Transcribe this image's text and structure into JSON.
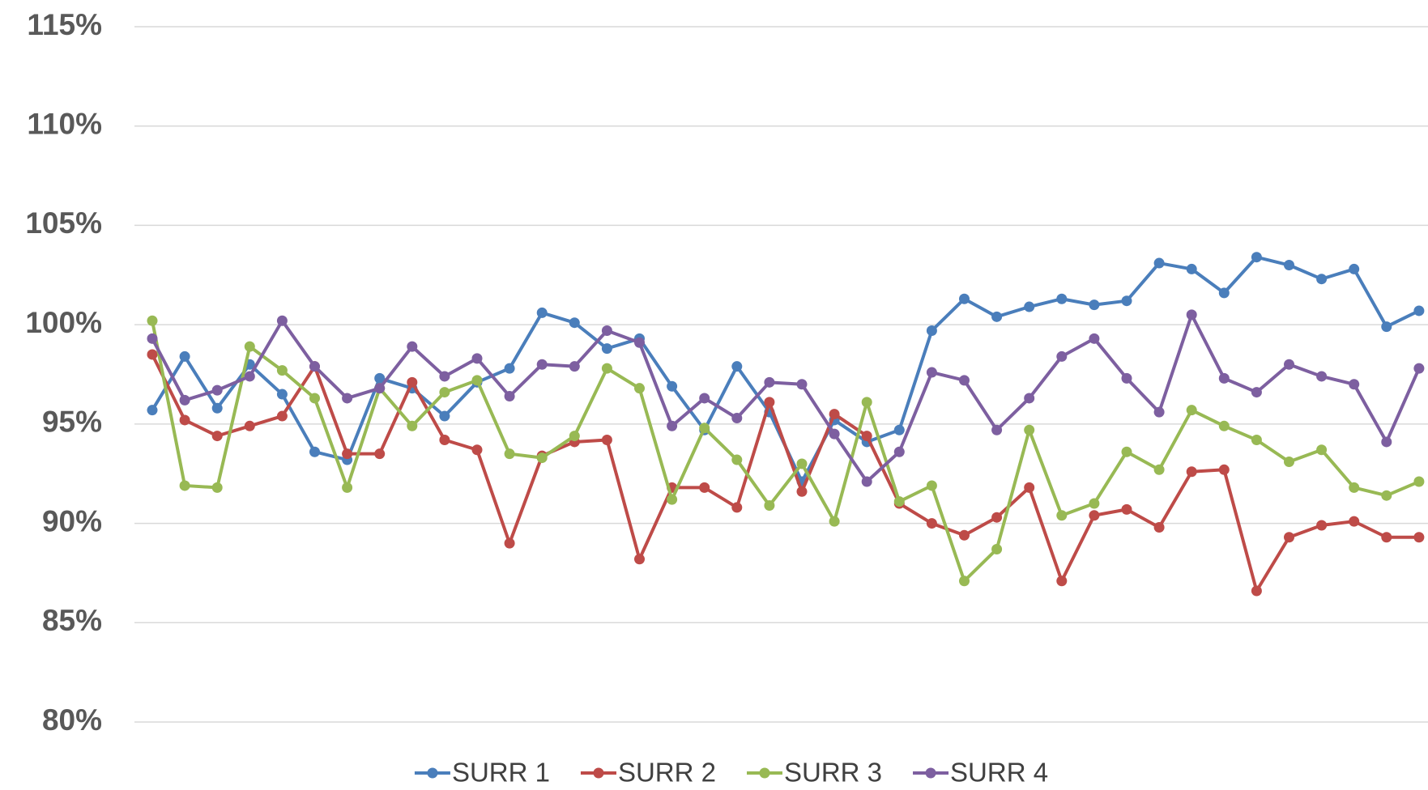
{
  "chart_data": {
    "type": "line",
    "categories": [
      null,
      null,
      null,
      null,
      null,
      null,
      null,
      null,
      null,
      null,
      null,
      null,
      null,
      null,
      null,
      null,
      null,
      null,
      null,
      null,
      null,
      null,
      null,
      null,
      null,
      null,
      null,
      null,
      null,
      null,
      null,
      null,
      null,
      null,
      null,
      null,
      null,
      null,
      null,
      null
    ],
    "series": [
      {
        "name": "SURR 1",
        "color": "#4a7ebb",
        "values": [
          95.7,
          98.4,
          95.8,
          98.0,
          96.5,
          93.6,
          93.2,
          97.3,
          96.8,
          95.4,
          97.1,
          97.8,
          100.6,
          100.1,
          98.8,
          99.3,
          96.9,
          94.7,
          97.9,
          95.6,
          92.1,
          95.2,
          94.1,
          94.7,
          99.7,
          101.3,
          100.4,
          100.9,
          101.3,
          101.0,
          101.2,
          103.1,
          102.8,
          101.6,
          103.4,
          103.0,
          102.3,
          102.8,
          99.9,
          100.7
        ]
      },
      {
        "name": "SURR 2",
        "color": "#be4b48",
        "values": [
          98.5,
          95.2,
          94.4,
          94.9,
          95.4,
          97.9,
          93.5,
          93.5,
          97.1,
          94.2,
          93.7,
          89.0,
          93.4,
          94.1,
          94.2,
          88.2,
          91.8,
          91.8,
          90.8,
          96.1,
          91.6,
          95.5,
          94.4,
          91.0,
          90.0,
          89.4,
          90.3,
          91.8,
          87.1,
          90.4,
          90.7,
          89.8,
          92.6,
          92.7,
          86.6,
          89.3,
          89.9,
          90.1,
          89.3,
          89.3
        ]
      },
      {
        "name": "SURR 3",
        "color": "#98b954",
        "values": [
          100.2,
          91.9,
          91.8,
          98.9,
          97.7,
          96.3,
          91.8,
          96.8,
          94.9,
          96.6,
          97.2,
          93.5,
          93.3,
          94.4,
          97.8,
          96.8,
          91.2,
          94.8,
          93.2,
          90.9,
          93.0,
          90.1,
          96.1,
          91.1,
          91.9,
          87.1,
          88.7,
          94.7,
          90.4,
          91.0,
          93.6,
          92.7,
          95.7,
          94.9,
          94.2,
          93.1,
          93.7,
          91.8,
          91.4,
          92.1
        ]
      },
      {
        "name": "SURR 4",
        "color": "#7d5fa0",
        "values": [
          99.3,
          96.2,
          96.7,
          97.4,
          100.2,
          97.9,
          96.3,
          96.8,
          98.9,
          97.4,
          98.3,
          96.4,
          98.0,
          97.9,
          99.7,
          99.1,
          94.9,
          96.3,
          95.3,
          97.1,
          97.0,
          94.5,
          92.1,
          93.6,
          97.6,
          97.2,
          94.7,
          96.3,
          98.4,
          99.3,
          97.3,
          95.6,
          100.5,
          97.3,
          96.6,
          98.0,
          97.4,
          97.0,
          94.1,
          97.8
        ]
      }
    ],
    "ylim": [
      80,
      115
    ],
    "yticks": [
      {
        "value": 80,
        "label": "80%"
      },
      {
        "value": 85,
        "label": "85%"
      },
      {
        "value": 90,
        "label": "90%"
      },
      {
        "value": 95,
        "label": "95%"
      },
      {
        "value": 100,
        "label": "100%"
      },
      {
        "value": 105,
        "label": "105%"
      },
      {
        "value": 110,
        "label": "110%"
      },
      {
        "value": 115,
        "label": "115%"
      }
    ],
    "grid": true,
    "legend": "bottom"
  }
}
